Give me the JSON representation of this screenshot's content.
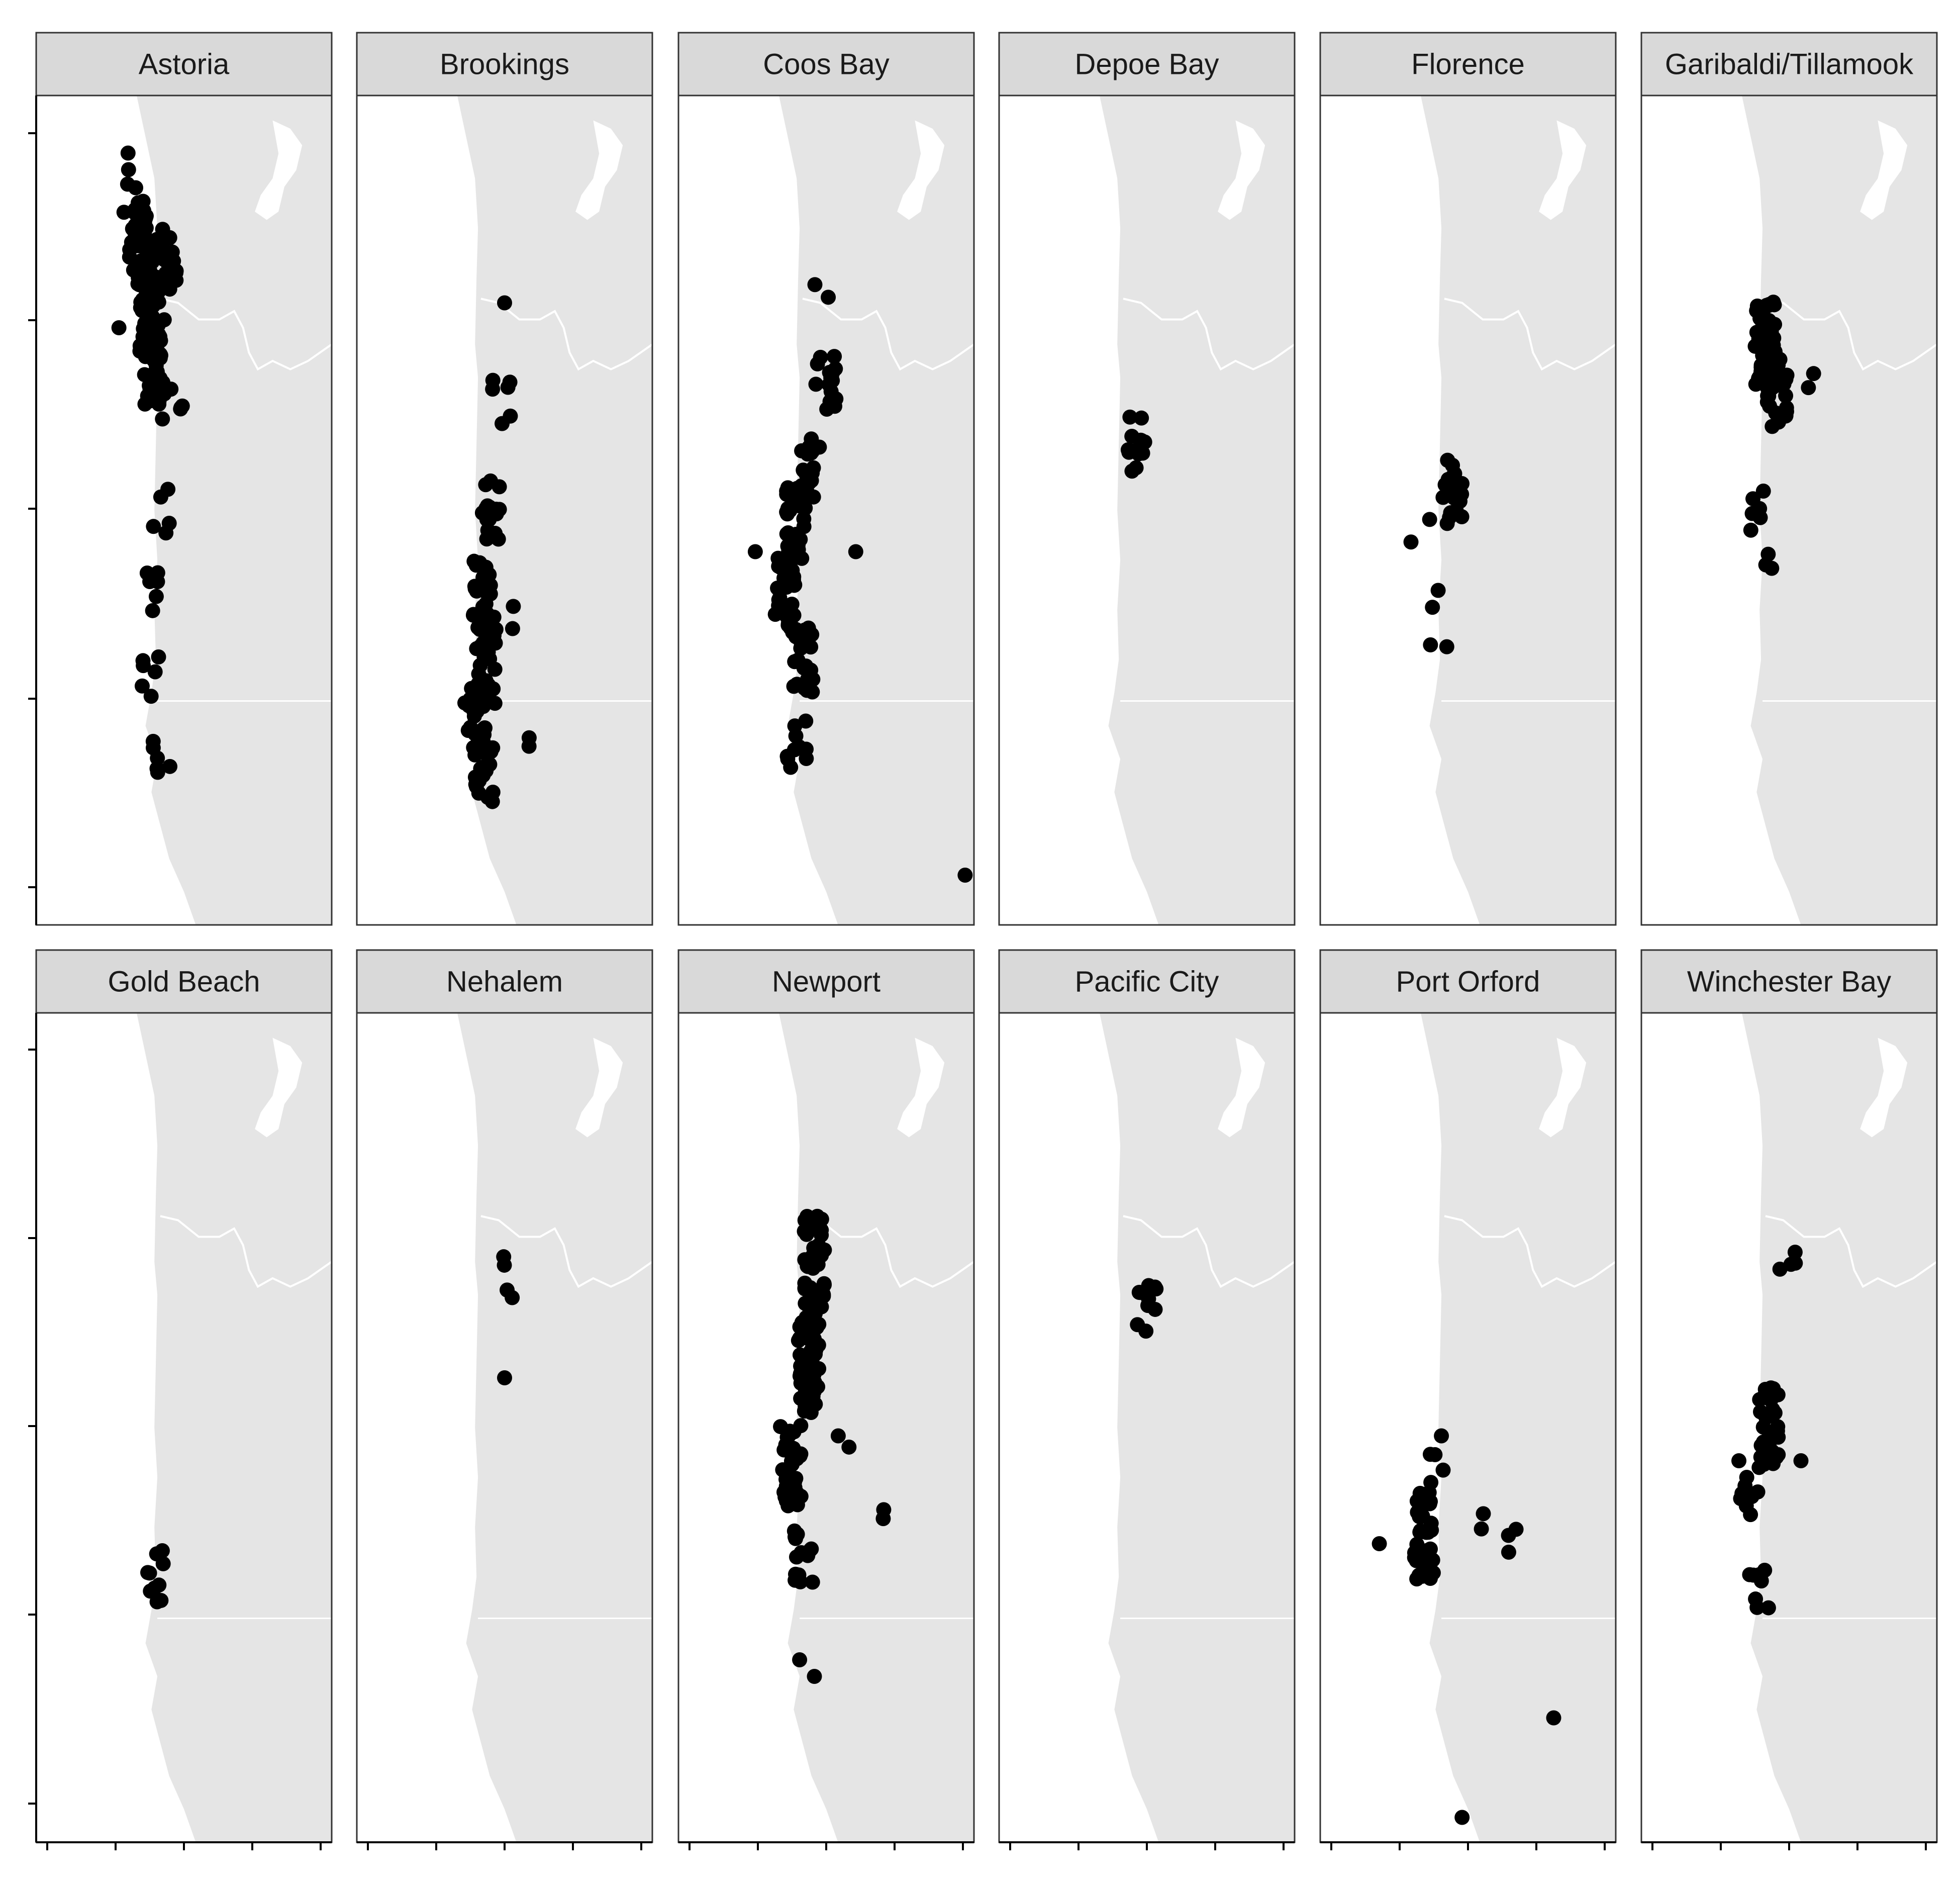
{
  "colors": {
    "land": "#e5e5e5",
    "water": "#ffffff",
    "point": "#000000",
    "strip_fill": "#d9d9d9",
    "frame": "#333333"
  },
  "panels": [
    {
      "label": "Astoria"
    },
    {
      "label": "Brookings"
    },
    {
      "label": "Coos Bay"
    },
    {
      "label": "Depoe Bay"
    },
    {
      "label": "Florence"
    },
    {
      "label": "Garibaldi/Tillamook"
    },
    {
      "label": "Gold Beach"
    },
    {
      "label": "Nehalem"
    },
    {
      "label": "Newport"
    },
    {
      "label": "Pacific City"
    },
    {
      "label": "Port Orford"
    },
    {
      "label": "Winchester Bay"
    }
  ],
  "axes": {
    "x_tick_count": 5,
    "y_tick_count": 5,
    "tick_labels_shown": false
  }
}
